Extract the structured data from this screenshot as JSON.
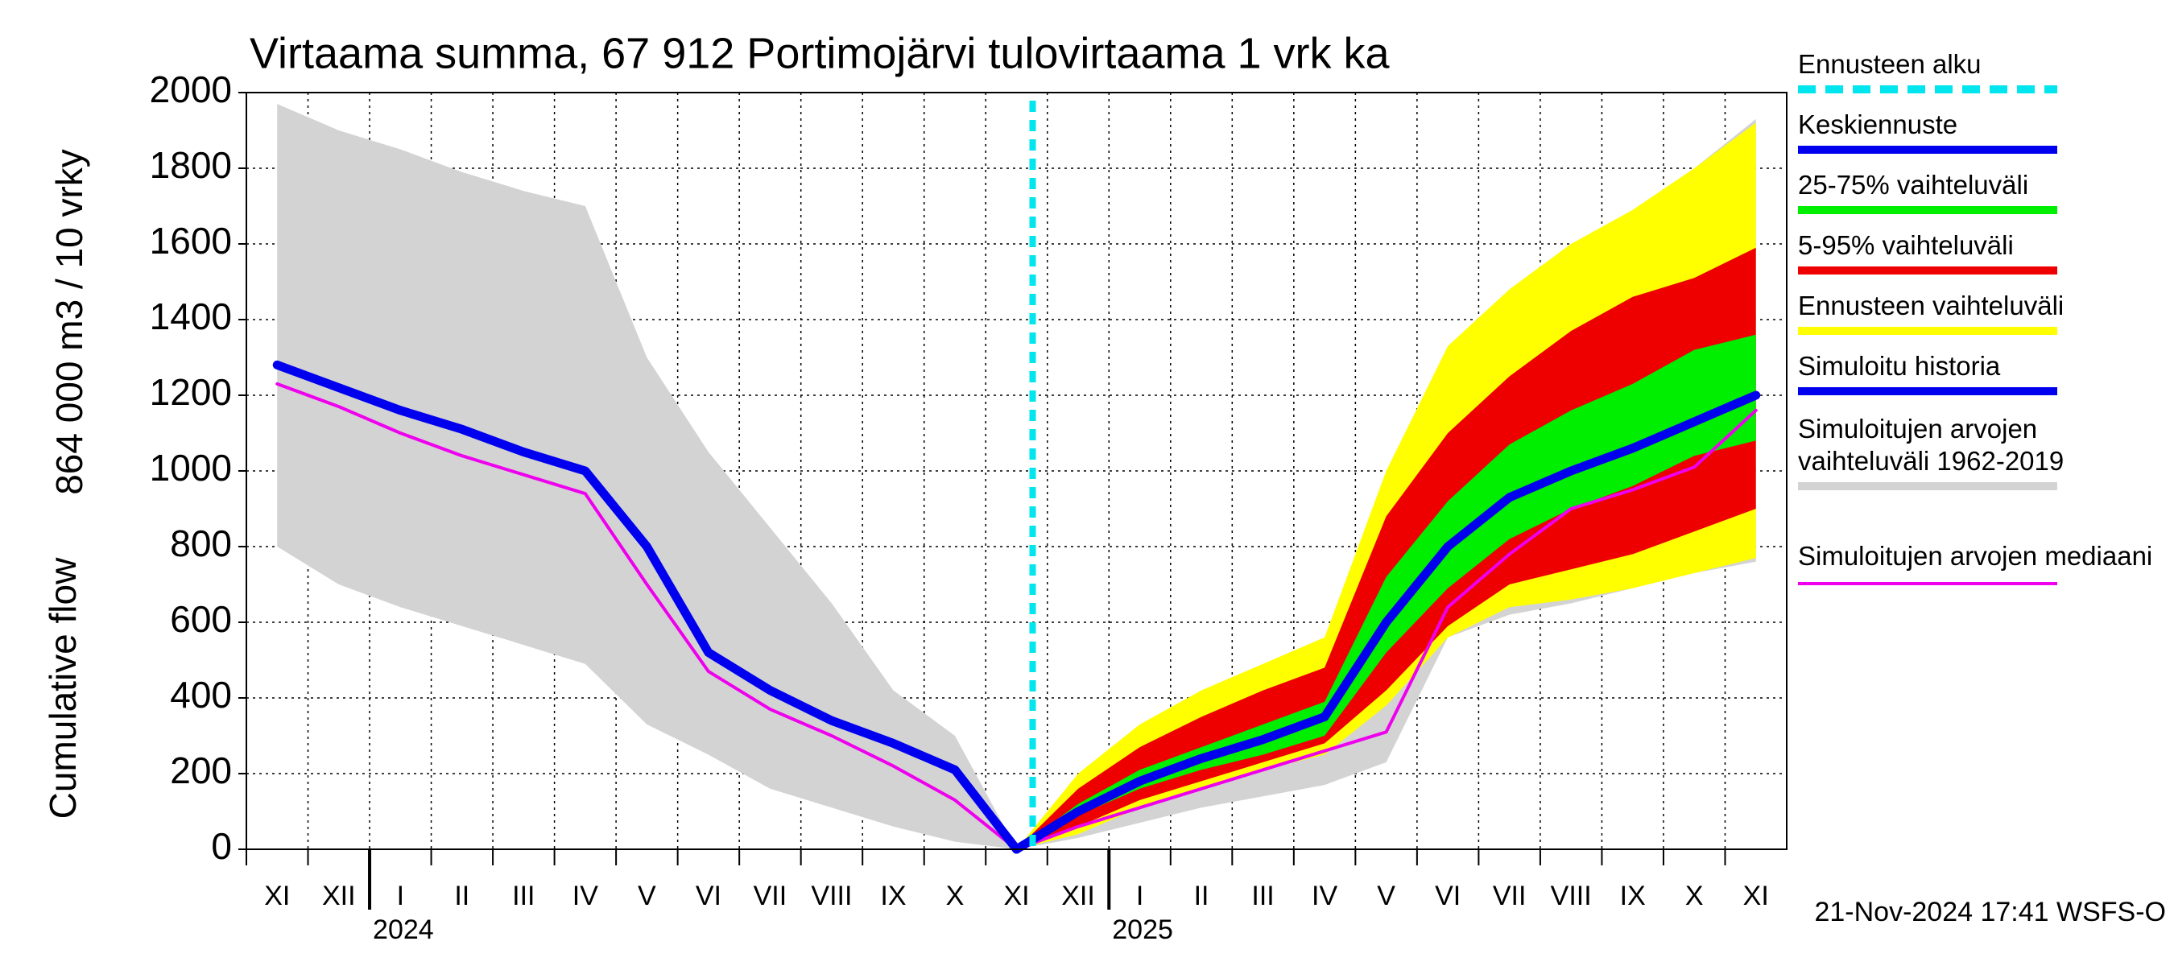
{
  "chart_data": {
    "type": "line",
    "title": "Virtaama summa, 67 912 Portimojärvi tulovirtaama 1 vrk ka",
    "ylabel": "864 000 m3 / 10 vrky",
    "ylabel2": "Cumulative flow",
    "footer": "21-Nov-2024 17:41 WSFS-O",
    "categories": [
      "XI",
      "XII",
      "I",
      "II",
      "III",
      "IV",
      "V",
      "VI",
      "VII",
      "VIII",
      "IX",
      "X",
      "XI",
      "XII",
      "I",
      "II",
      "III",
      "IV",
      "V",
      "VI",
      "VII",
      "VIII",
      "IX",
      "X",
      "XI"
    ],
    "years": [
      null,
      null,
      "2024",
      null,
      null,
      null,
      null,
      null,
      null,
      null,
      null,
      null,
      null,
      null,
      "2025",
      null,
      null,
      null,
      null,
      null,
      null,
      null,
      null,
      null,
      null
    ],
    "ylim": [
      0,
      2000
    ],
    "yticks": [
      0,
      200,
      400,
      600,
      800,
      1000,
      1200,
      1400,
      1600,
      1800,
      2000
    ],
    "grid": true,
    "forecast_start": {
      "name": "Ennusteen alku",
      "color": "#00e5ee"
    },
    "series": [
      {
        "name": "Keskiennuste",
        "kind": "line",
        "color": "#0000ee",
        "values": [
          null,
          null,
          null,
          null,
          null,
          null,
          null,
          null,
          null,
          null,
          null,
          null,
          0,
          100,
          180,
          240,
          290,
          350,
          600,
          800,
          930,
          1000,
          1060,
          1130,
          1200
        ]
      },
      {
        "name": "25-75% vaihteluväli",
        "kind": "band",
        "color": "#00ee00",
        "low": [
          null,
          null,
          null,
          null,
          null,
          null,
          null,
          null,
          null,
          null,
          null,
          null,
          0,
          90,
          160,
          210,
          250,
          300,
          520,
          690,
          820,
          900,
          960,
          1040,
          1080
        ],
        "high": [
          null,
          null,
          null,
          null,
          null,
          null,
          null,
          null,
          null,
          null,
          null,
          null,
          0,
          120,
          210,
          270,
          330,
          390,
          720,
          920,
          1070,
          1160,
          1230,
          1320,
          1360
        ]
      },
      {
        "name": "5-95% vaihteluväli",
        "kind": "band",
        "color": "#ee0000",
        "low": [
          null,
          null,
          null,
          null,
          null,
          null,
          null,
          null,
          null,
          null,
          null,
          null,
          0,
          60,
          130,
          180,
          230,
          280,
          420,
          590,
          700,
          740,
          780,
          840,
          900
        ],
        "high": [
          null,
          null,
          null,
          null,
          null,
          null,
          null,
          null,
          null,
          null,
          null,
          null,
          0,
          160,
          270,
          350,
          420,
          480,
          880,
          1100,
          1250,
          1370,
          1460,
          1510,
          1590
        ]
      },
      {
        "name": "Ennusteen vaihteluväli",
        "kind": "band",
        "color": "#ffff00",
        "low": [
          null,
          null,
          null,
          null,
          null,
          null,
          null,
          null,
          null,
          null,
          null,
          null,
          0,
          40,
          110,
          160,
          210,
          250,
          380,
          560,
          640,
          660,
          690,
          730,
          770
        ],
        "high": [
          null,
          null,
          null,
          null,
          null,
          null,
          null,
          null,
          null,
          null,
          null,
          null,
          0,
          200,
          330,
          420,
          490,
          560,
          1000,
          1330,
          1480,
          1600,
          1690,
          1800,
          1920
        ]
      },
      {
        "name": "Simuloitu historia",
        "kind": "line",
        "color": "#0000ee",
        "values": [
          1280,
          1220,
          1160,
          1110,
          1050,
          1000,
          800,
          520,
          420,
          340,
          280,
          210,
          0,
          null,
          null,
          null,
          null,
          null,
          null,
          null,
          null,
          null,
          null,
          null,
          null
        ]
      },
      {
        "name": "Simuloitujen arvojen vaihteluväli 1962-2019",
        "kind": "band",
        "color": "#d3d3d3",
        "low": [
          800,
          700,
          640,
          590,
          540,
          490,
          330,
          250,
          160,
          110,
          60,
          20,
          0,
          30,
          70,
          110,
          140,
          170,
          230,
          560,
          620,
          650,
          690,
          730,
          760
        ],
        "high": [
          1970,
          1900,
          1850,
          1790,
          1740,
          1700,
          1300,
          1050,
          850,
          650,
          420,
          300,
          0,
          180,
          290,
          360,
          420,
          480,
          800,
          1130,
          1280,
          1420,
          1660,
          1800,
          1930
        ]
      },
      {
        "name": "Simuloitujen arvojen mediaani",
        "kind": "line",
        "color": "#ee00ee",
        "values": [
          1230,
          1170,
          1100,
          1040,
          990,
          940,
          700,
          470,
          370,
          300,
          220,
          130,
          0,
          60,
          110,
          160,
          210,
          260,
          310,
          640,
          780,
          900,
          950,
          1010,
          1160
        ]
      }
    ]
  }
}
